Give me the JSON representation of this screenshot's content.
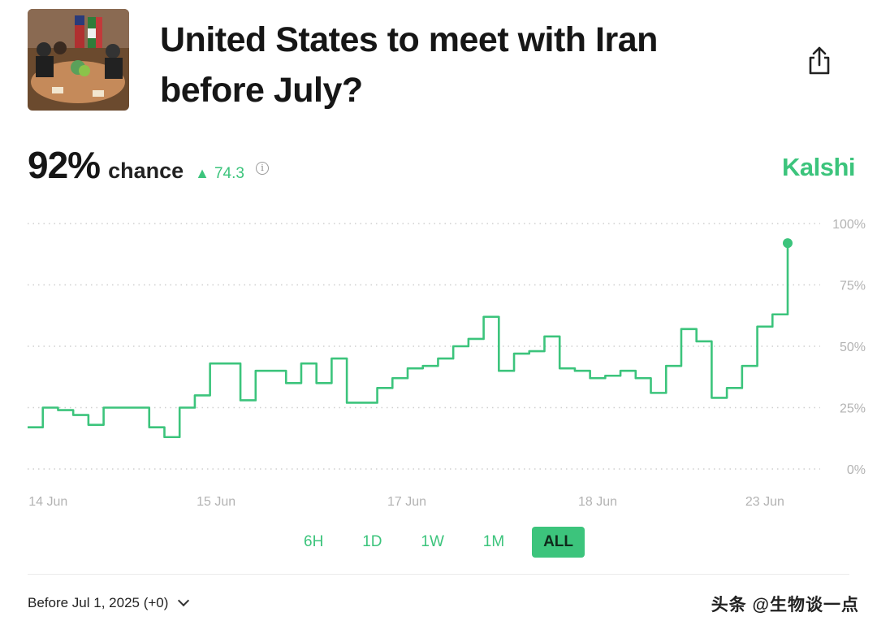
{
  "header": {
    "title": "United States to meet with Iran before July?",
    "share_icon": "share-icon"
  },
  "odds": {
    "percent": "92%",
    "chance_label": "chance",
    "delta": "74.3",
    "delta_direction": "up",
    "info_icon": "info-icon"
  },
  "brand": "Kalshi",
  "colors": {
    "accent": "#3cc47c",
    "text": "#161616",
    "muted": "#9a9a9a"
  },
  "chart_data": {
    "type": "line",
    "x_tick_labels": [
      "14 Jun",
      "15 Jun",
      "17 Jun",
      "18 Jun",
      "23 Jun"
    ],
    "y_tick_labels": [
      "100%",
      "75%",
      "50%",
      "25%",
      "0%"
    ],
    "ylim": [
      0,
      100
    ],
    "grid": true,
    "x": [
      0,
      2,
      4,
      6,
      8,
      10,
      12,
      14,
      16,
      18,
      20,
      22,
      24,
      26,
      28,
      30,
      32,
      34,
      36,
      38,
      40,
      42,
      44,
      46,
      48,
      50,
      52,
      54,
      56,
      58,
      60,
      62,
      64,
      66,
      68,
      70,
      72,
      74,
      76,
      78,
      80,
      82,
      84,
      86,
      88,
      90,
      92,
      94,
      96,
      98,
      100
    ],
    "values": [
      17,
      25,
      24,
      22,
      18,
      25,
      25,
      25,
      17,
      13,
      25,
      30,
      43,
      43,
      28,
      40,
      40,
      35,
      43,
      35,
      45,
      27,
      27,
      33,
      37,
      41,
      42,
      45,
      50,
      53,
      62,
      40,
      47,
      48,
      54,
      41,
      40,
      37,
      38,
      40,
      37,
      31,
      42,
      57,
      52,
      29,
      33,
      42,
      58,
      63,
      92
    ],
    "last_value": 92
  },
  "ranges": {
    "items": [
      "6H",
      "1D",
      "1W",
      "1M",
      "ALL"
    ],
    "selected": "ALL"
  },
  "contract": {
    "label": "Before Jul 1, 2025 (+0)"
  },
  "watermark": "头条 @生物谈一点"
}
